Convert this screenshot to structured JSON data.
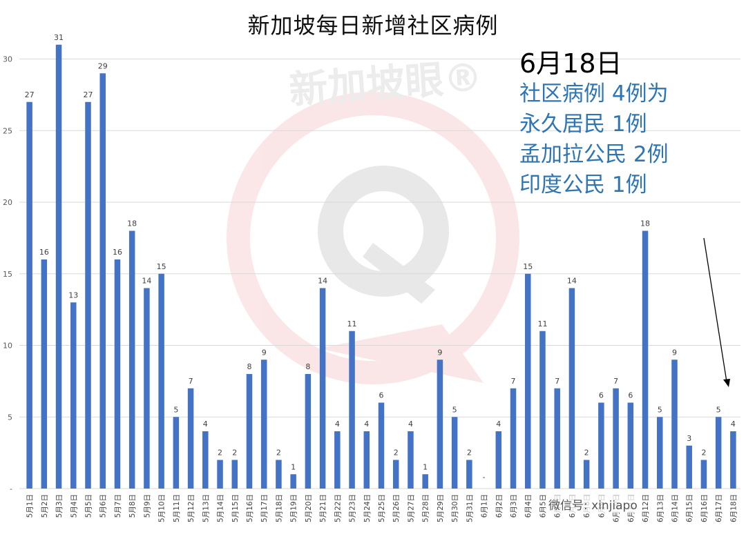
{
  "chart_data": {
    "type": "bar",
    "title": "新加坡每日新增社区病例",
    "categories": [
      "5月1日",
      "5月2日",
      "5月3日",
      "5月4日",
      "5月5日",
      "5月6日",
      "5月7日",
      "5月8日",
      "5月9日",
      "5月10日",
      "5月11日",
      "5月12日",
      "5月13日",
      "5月14日",
      "5月15日",
      "5月16日",
      "5月17日",
      "5月18日",
      "5月19日",
      "5月20日",
      "5月21日",
      "5月22日",
      "5月23日",
      "5月24日",
      "5月25日",
      "5月26日",
      "5月27日",
      "5月28日",
      "5月29日",
      "5月30日",
      "5月31日",
      "6月1日",
      "6月2日",
      "6月3日",
      "6月4日",
      "6月5日",
      "6月6日",
      "6月7日",
      "6月8日",
      "6月9日",
      "6月10日",
      "6月11日",
      "6月12日",
      "6月13日",
      "6月14日",
      "6月15日",
      "6月16日",
      "6月17日",
      "6月18日"
    ],
    "values": [
      27,
      16,
      31,
      13,
      27,
      29,
      16,
      18,
      14,
      15,
      5,
      7,
      4,
      2,
      2,
      8,
      9,
      2,
      1,
      8,
      14,
      4,
      11,
      4,
      6,
      2,
      4,
      1,
      9,
      5,
      2,
      0,
      4,
      7,
      15,
      11,
      7,
      14,
      2,
      6,
      7,
      6,
      18,
      5,
      9,
      3,
      2,
      5,
      4
    ],
    "value_labels": [
      "27",
      "16",
      "31",
      "13",
      "27",
      "29",
      "16",
      "18",
      "14",
      "15",
      "5",
      "7",
      "4",
      "2",
      "2",
      "8",
      "9",
      "2",
      "1",
      "8",
      "14",
      "4",
      "11",
      "4",
      "6",
      "2",
      "4",
      "1",
      "9",
      "5",
      "2",
      "-",
      "4",
      "7",
      "15",
      "11",
      "7",
      "14",
      "2",
      "6",
      "7",
      "6",
      "18",
      "5",
      "9",
      "3",
      "2",
      "5",
      "4"
    ],
    "ylim": [
      0,
      32
    ],
    "yticks": [
      0,
      5,
      10,
      15,
      20,
      25,
      30
    ],
    "ytick_labels": [
      "-",
      "5",
      "10",
      "15",
      "20",
      "25",
      "30"
    ],
    "grid": true,
    "xlabel": "",
    "ylabel": "",
    "bar_color": "#4472c4",
    "grid_color": "#d9d9d9"
  },
  "annotation": {
    "date": "6月18日",
    "lines": [
      "社区病例 4例为",
      "永久居民 1例",
      "孟加拉公民 2例",
      "印度公民 1例"
    ],
    "color": "#2e75b6"
  },
  "footer": {
    "text": "微信号: xinjiapo"
  },
  "watermark": {
    "text": "新加坡眼®",
    "color": "#e8474c"
  }
}
